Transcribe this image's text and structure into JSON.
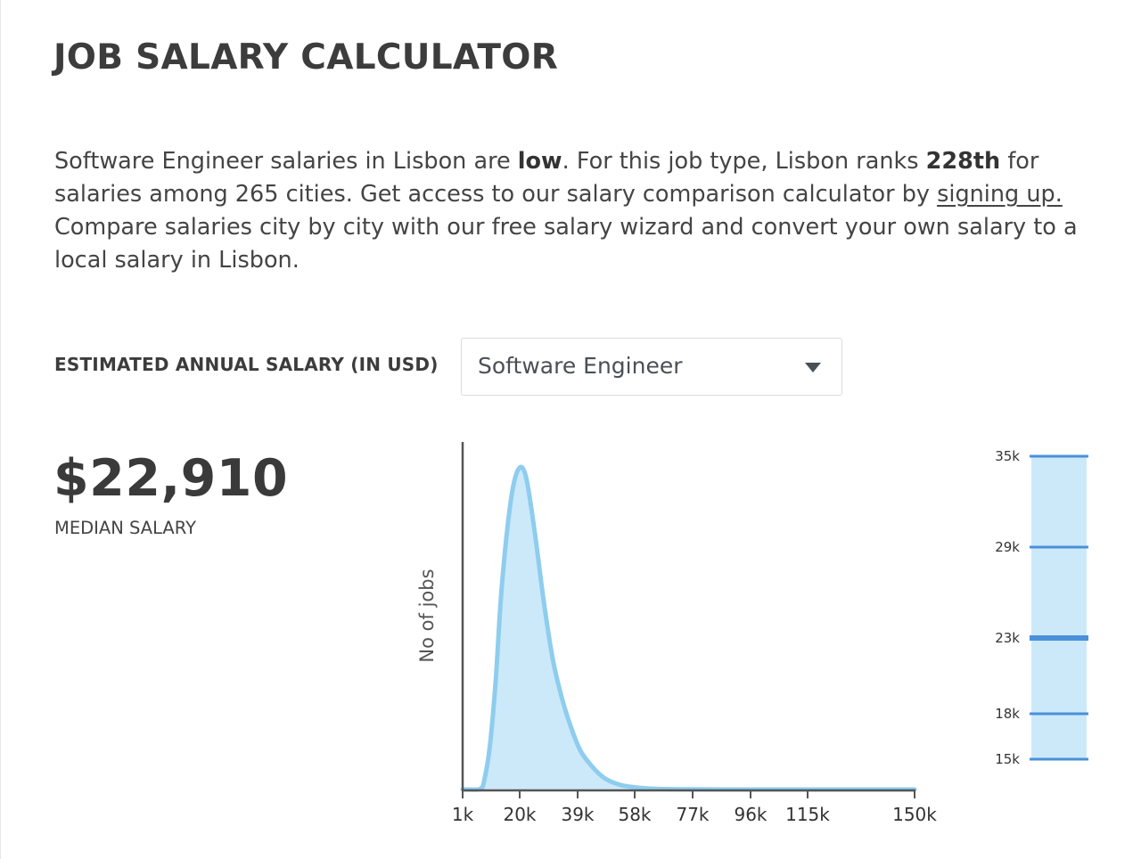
{
  "title": "JOB SALARY CALCULATOR",
  "intro": {
    "p1": "Software Engineer salaries in Lisbon are ",
    "b1": "low",
    "p2": ". For this job type, Lisbon ranks ",
    "b2": "228th",
    "p3": " for salaries among 265 cities. Get access to our salary comparison calculator by ",
    "link": "signing up.",
    "p4": " Compare salaries city by city with our free salary wizard and convert your own salary to a local salary in Lisbon."
  },
  "salary_label": "ESTIMATED ANNUAL SALARY (IN USD)",
  "job_select": {
    "value": "Software Engineer",
    "icon": "dropdown-caret-icon"
  },
  "median": {
    "value": "$22,910",
    "label": "MEDIAN SALARY"
  },
  "colors": {
    "curve_stroke": "#8ecdee",
    "curve_fill": "#cce9fa",
    "scale_line": "#4a90d9",
    "axis": "#555555"
  },
  "chart_data": [
    {
      "type": "area",
      "ylabel": "No of jobs",
      "xlabel": "",
      "x_ticks": [
        "1k",
        "20k",
        "39k",
        "58k",
        "77k",
        "96k",
        "115k",
        "150k"
      ],
      "x_tick_values": [
        1,
        20,
        39,
        58,
        77,
        96,
        115,
        150
      ],
      "x_unit": "thousand USD",
      "series": [
        {
          "x": [
            1,
            6,
            7,
            8,
            10,
            12,
            14,
            17,
            19.5,
            22,
            25,
            28,
            31,
            34,
            37,
            40,
            44,
            48,
            53,
            58,
            65,
            75,
            90,
            110,
            130,
            150
          ],
          "y": [
            0,
            0,
            0.3,
            2,
            13,
            34,
            63,
            90,
            100,
            98,
            80,
            58,
            40,
            28,
            19,
            12,
            7,
            3.5,
            1.5,
            0.7,
            0.2,
            0.05,
            0,
            0,
            0,
            0
          ]
        }
      ],
      "y_max": 100,
      "grid": false
    },
    {
      "type": "scale",
      "ticks": [
        "35k",
        "29k",
        "23k",
        "18k",
        "15k"
      ],
      "values": [
        35,
        29,
        23,
        18,
        15
      ],
      "highlight": "23k"
    }
  ]
}
